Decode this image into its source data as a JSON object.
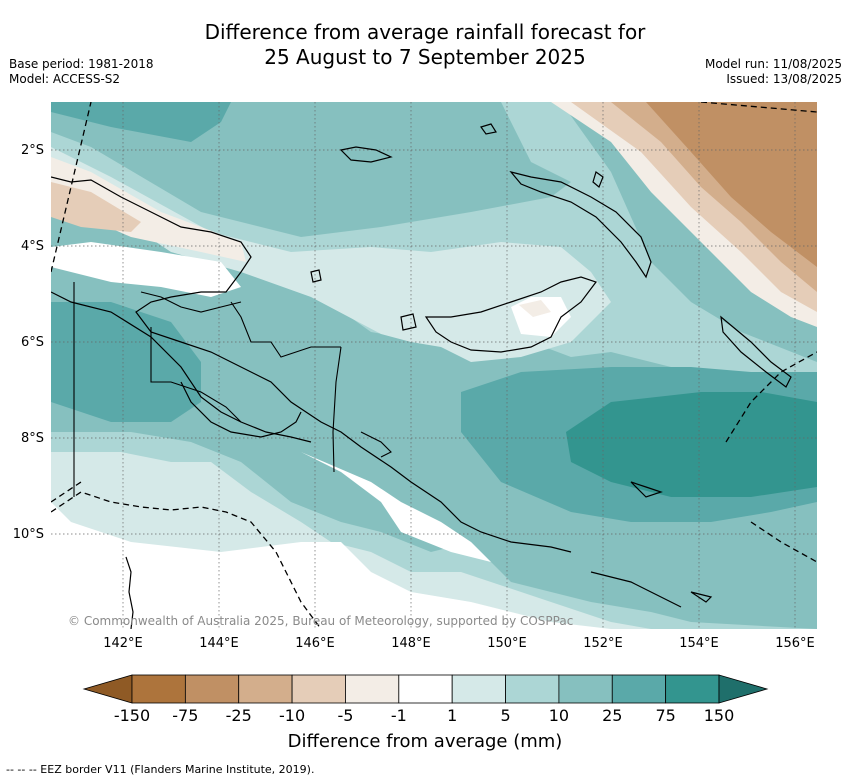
{
  "title": {
    "line1": "Difference from average rainfall forecast for",
    "line2": "25 August to 7 September 2025"
  },
  "meta": {
    "base_period": "Base period: 1981-2018",
    "model": "Model: ACCESS-S2",
    "model_run": "Model run: 11/08/2025",
    "issued": "Issued: 13/08/2025"
  },
  "map": {
    "lat_labels": [
      "2°S",
      "4°S",
      "6°S",
      "8°S",
      "10°S"
    ],
    "lon_labels": [
      "142°E",
      "144°E",
      "146°E",
      "148°E",
      "150°E",
      "152°E",
      "154°E",
      "156°E"
    ],
    "copyright": "© Commonwealth of Australia 2025, Bureau of Meteorology, supported by COSPPac"
  },
  "colorbar": {
    "ticks": [
      "-150",
      "-75",
      "-25",
      "-10",
      "-5",
      "-1",
      "1",
      "5",
      "10",
      "25",
      "75",
      "150"
    ],
    "colors": [
      "#8f5a25",
      "#ad743c",
      "#c09064",
      "#d3ae8c",
      "#e5cdb8",
      "#f3ede6",
      "#ffffff",
      "#d5e9e8",
      "#acd6d5",
      "#86c0bf",
      "#5aa9a9",
      "#33958f",
      "#1f6f6b"
    ],
    "label": "Difference from average (mm)"
  },
  "footnote": "--  --  -- EEZ border V11 (Flanders Marine Institute, 2019)."
}
